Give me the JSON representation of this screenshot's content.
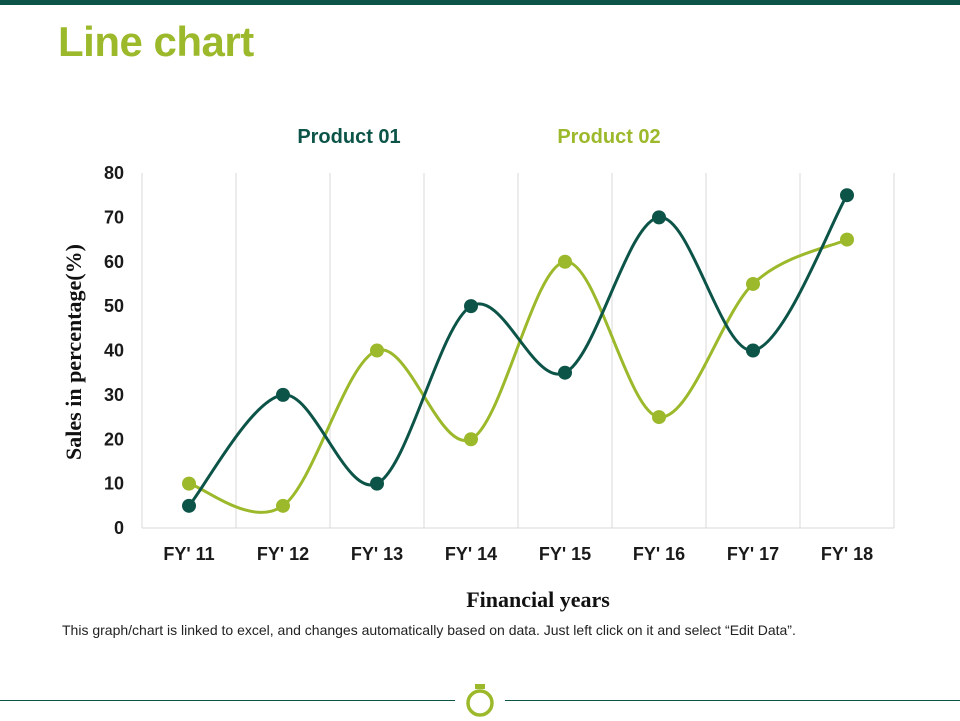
{
  "page": {
    "title": "Line chart",
    "footnote": "This graph/chart is linked to excel, and changes automatically  based on data. Just left click on it and select “Edit Data”.",
    "footer_icon": "ring-icon"
  },
  "colors": {
    "product01": "#0d5448",
    "product02": "#9cb92b",
    "grid": "#d9d9d9",
    "accent": "#0d5448"
  },
  "chart_data": {
    "type": "line",
    "title": "",
    "xlabel": "Financial years",
    "ylabel": "Sales in percentage(%)",
    "categories": [
      "FY' 11",
      "FY' 12",
      "FY' 13",
      "FY' 14",
      "FY' 15",
      "FY' 16",
      "FY' 17",
      "FY' 18"
    ],
    "ylim": [
      0,
      80
    ],
    "yticks": [
      0,
      10,
      20,
      30,
      40,
      50,
      60,
      70,
      80
    ],
    "grid": "vertical",
    "smooth": true,
    "legend_position": "top",
    "series": [
      {
        "name": "Product 01",
        "color": "#0d5448",
        "values": [
          5,
          30,
          10,
          50,
          35,
          70,
          40,
          75
        ]
      },
      {
        "name": "Product 02",
        "color": "#9cb92b",
        "values": [
          10,
          5,
          40,
          20,
          60,
          25,
          55,
          65
        ]
      }
    ]
  }
}
